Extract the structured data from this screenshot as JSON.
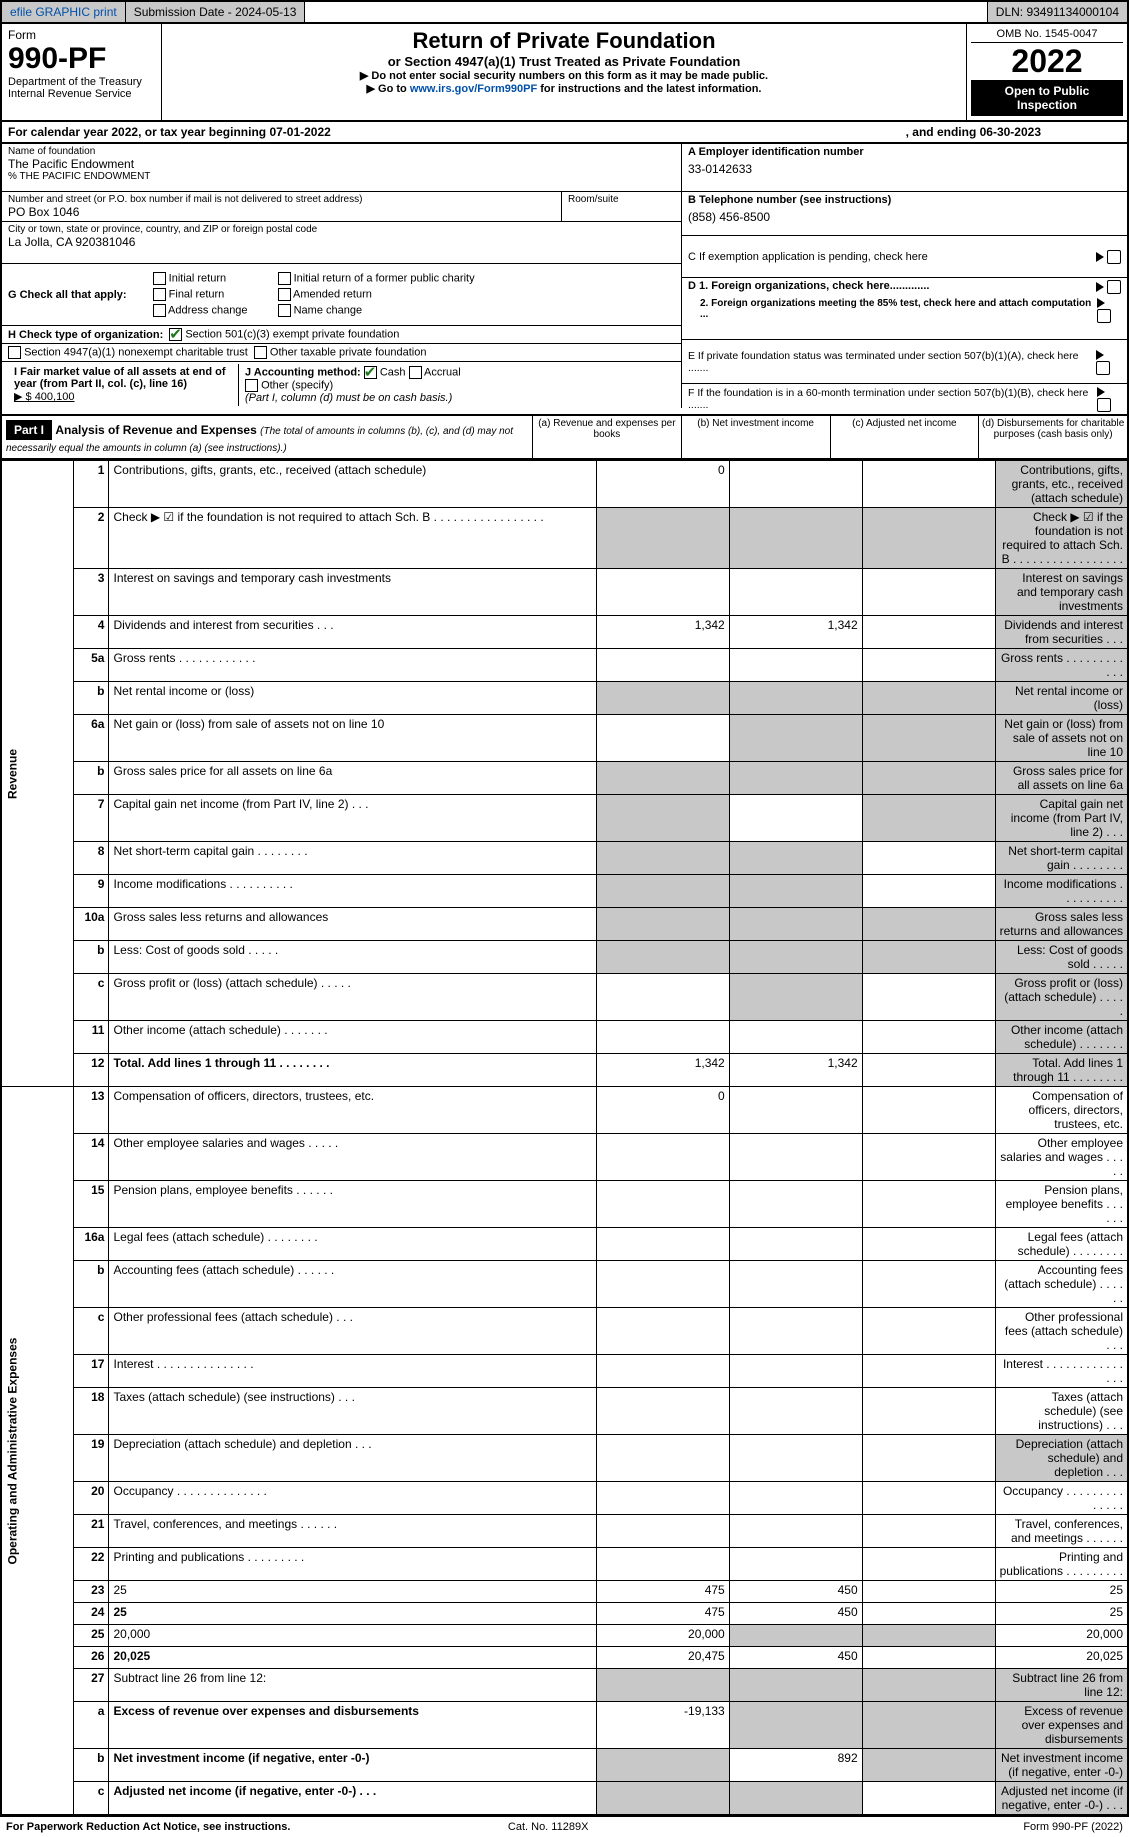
{
  "topbar": {
    "efile": "efile GRAPHIC print",
    "sub_label": "Submission Date - 2024-05-13",
    "dln": "DLN: 93491134000104"
  },
  "header": {
    "form_word": "Form",
    "form_no": "990-PF",
    "dept": "Department of the Treasury",
    "irs": "Internal Revenue Service",
    "title": "Return of Private Foundation",
    "subtitle": "or Section 4947(a)(1) Trust Treated as Private Foundation",
    "instr1": "▶ Do not enter social security numbers on this form as it may be made public.",
    "instr2_pre": "▶ Go to ",
    "instr2_link": "www.irs.gov/Form990PF",
    "instr2_post": " for instructions and the latest information.",
    "omb": "OMB No. 1545-0047",
    "year": "2022",
    "open": "Open to Public Inspection"
  },
  "calendar": {
    "begin": "For calendar year 2022, or tax year beginning 07-01-2022",
    "end": ", and ending 06-30-2023"
  },
  "id": {
    "name_lbl": "Name of foundation",
    "name": "The Pacific Endowment",
    "co": "% THE PACIFIC ENDOWMENT",
    "addr_lbl": "Number and street (or P.O. box number if mail is not delivered to street address)",
    "addr": "PO Box 1046",
    "room_lbl": "Room/suite",
    "city_lbl": "City or town, state or province, country, and ZIP or foreign postal code",
    "city": "La Jolla, CA  920381046",
    "a_lbl": "A Employer identification number",
    "a_val": "33-0142633",
    "b_lbl": "B Telephone number (see instructions)",
    "b_val": "(858) 456-8500",
    "c_lbl": "C If exemption application is pending, check here",
    "d1": "D 1. Foreign organizations, check here.............",
    "d2": "2. Foreign organizations meeting the 85% test, check here and attach computation ...",
    "e_lbl": "E  If private foundation status was terminated under section 507(b)(1)(A), check here .......",
    "f_lbl": "F  If the foundation is in a 60-month termination under section 507(b)(1)(B), check here ......."
  },
  "g": {
    "label": "G Check all that apply:",
    "opts": [
      "Initial return",
      "Final return",
      "Address change",
      "Initial return of a former public charity",
      "Amended return",
      "Name change"
    ]
  },
  "h": {
    "label": "H Check type of organization:",
    "opt1": "Section 501(c)(3) exempt private foundation",
    "opt2": "Section 4947(a)(1) nonexempt charitable trust",
    "opt3": "Other taxable private foundation"
  },
  "i": {
    "label": "I Fair market value of all assets at end of year (from Part II, col. (c), line 16)",
    "val": "▶ $  400,100"
  },
  "j": {
    "label": "J Accounting method:",
    "cash": "Cash",
    "accrual": "Accrual",
    "other": "Other (specify)",
    "note": "(Part I, column (d) must be on cash basis.)"
  },
  "part1": {
    "tag": "Part I",
    "title": "Analysis of Revenue and Expenses",
    "note": "(The total of amounts in columns (b), (c), and (d) may not necessarily equal the amounts in column (a) (see instructions).)",
    "cols": {
      "a": "(a)  Revenue and expenses per books",
      "b": "(b)  Net investment income",
      "c": "(c)  Adjusted net income",
      "d": "(d)  Disbursements for charitable purposes (cash basis only)"
    }
  },
  "sections": {
    "rev": "Revenue",
    "op": "Operating and Administrative Expenses"
  },
  "rows": [
    {
      "n": "1",
      "d": "Contributions, gifts, grants, etc., received (attach schedule)",
      "a": "0",
      "grey": [
        "d"
      ]
    },
    {
      "n": "2",
      "d": "Check ▶ ☑ if the foundation is not required to attach Sch. B  .   .   .   .   .   .   .   .   .   .   .   .   .   .   .   .   .",
      "grey": [
        "a",
        "b",
        "c",
        "d"
      ]
    },
    {
      "n": "3",
      "d": "Interest on savings and temporary cash investments",
      "grey": [
        "d"
      ]
    },
    {
      "n": "4",
      "d": "Dividends and interest from securities   .   .   .",
      "a": "1,342",
      "b": "1,342",
      "grey": [
        "d"
      ]
    },
    {
      "n": "5a",
      "d": "Gross rents   .   .   .   .   .   .   .   .   .   .   .   .",
      "grey": [
        "d"
      ]
    },
    {
      "n": "b",
      "d": "Net rental income or (loss)  ",
      "grey": [
        "a",
        "b",
        "c",
        "d"
      ]
    },
    {
      "n": "6a",
      "d": "Net gain or (loss) from sale of assets not on line 10",
      "grey": [
        "b",
        "c",
        "d"
      ]
    },
    {
      "n": "b",
      "d": "Gross sales price for all assets on line 6a ",
      "grey": [
        "a",
        "b",
        "c",
        "d"
      ]
    },
    {
      "n": "7",
      "d": "Capital gain net income (from Part IV, line 2)   .   .   .",
      "grey": [
        "a",
        "c",
        "d"
      ]
    },
    {
      "n": "8",
      "d": "Net short-term capital gain  .   .   .   .   .   .   .   .",
      "grey": [
        "a",
        "b",
        "d"
      ]
    },
    {
      "n": "9",
      "d": "Income modifications  .   .   .   .   .   .   .   .   .   .",
      "grey": [
        "a",
        "b",
        "d"
      ]
    },
    {
      "n": "10a",
      "d": "Gross sales less returns and allowances",
      "grey": [
        "a",
        "b",
        "c",
        "d"
      ]
    },
    {
      "n": "b",
      "d": "Less: Cost of goods sold   .   .   .   .   .   ",
      "grey": [
        "a",
        "b",
        "c",
        "d"
      ]
    },
    {
      "n": "c",
      "d": "Gross profit or (loss) (attach schedule)   .   .   .   .   .",
      "grey": [
        "b",
        "d"
      ]
    },
    {
      "n": "11",
      "d": "Other income (attach schedule)   .   .   .   .   .   .   .",
      "grey": [
        "d"
      ]
    },
    {
      "n": "12",
      "d": "Total. Add lines 1 through 11  .   .   .   .   .   .   .   .",
      "bold": true,
      "a": "1,342",
      "b": "1,342",
      "grey": [
        "d"
      ]
    },
    {
      "n": "13",
      "d": "Compensation of officers, directors, trustees, etc.",
      "a": "0"
    },
    {
      "n": "14",
      "d": "Other employee salaries and wages   .   .   .   .   ."
    },
    {
      "n": "15",
      "d": "Pension plans, employee benefits  .   .   .   .   .   ."
    },
    {
      "n": "16a",
      "d": "Legal fees (attach schedule)  .   .   .   .   .   .   .   ."
    },
    {
      "n": "b",
      "d": "Accounting fees (attach schedule)  .   .   .   .   .   ."
    },
    {
      "n": "c",
      "d": "Other professional fees (attach schedule)   .   .   ."
    },
    {
      "n": "17",
      "d": "Interest  .   .   .   .   .   .   .   .   .   .   .   .   .   .   ."
    },
    {
      "n": "18",
      "d": "Taxes (attach schedule) (see instructions)   .   .   ."
    },
    {
      "n": "19",
      "d": "Depreciation (attach schedule) and depletion   .   .   .",
      "grey": [
        "d"
      ]
    },
    {
      "n": "20",
      "d": "Occupancy  .   .   .   .   .   .   .   .   .   .   .   .   .   ."
    },
    {
      "n": "21",
      "d": "Travel, conferences, and meetings  .   .   .   .   .   ."
    },
    {
      "n": "22",
      "d": "Printing and publications  .   .   .   .   .   .   .   .   ."
    },
    {
      "n": "23",
      "d": "25",
      "a": "475",
      "b": "450"
    },
    {
      "n": "24",
      "d": "25",
      "bold": true,
      "a": "475",
      "b": "450"
    },
    {
      "n": "25",
      "d": "20,000",
      "a": "20,000",
      "grey": [
        "b",
        "c"
      ]
    },
    {
      "n": "26",
      "d": "20,025",
      "bold": true,
      "a": "20,475",
      "b": "450"
    },
    {
      "n": "27",
      "d": "Subtract line 26 from line 12:",
      "grey": [
        "a",
        "b",
        "c",
        "d"
      ]
    },
    {
      "n": "a",
      "d": "Excess of revenue over expenses and disbursements",
      "bold": true,
      "a": "-19,133",
      "grey": [
        "b",
        "c",
        "d"
      ]
    },
    {
      "n": "b",
      "d": "Net investment income (if negative, enter -0-)",
      "bold": true,
      "b": "892",
      "grey": [
        "a",
        "c",
        "d"
      ]
    },
    {
      "n": "c",
      "d": "Adjusted net income (if negative, enter -0-)   .   .   .",
      "bold": true,
      "grey": [
        "a",
        "b",
        "d"
      ]
    }
  ],
  "footer": {
    "left": "For Paperwork Reduction Act Notice, see instructions.",
    "mid": "Cat. No. 11289X",
    "right": "Form 990-PF (2022)"
  }
}
